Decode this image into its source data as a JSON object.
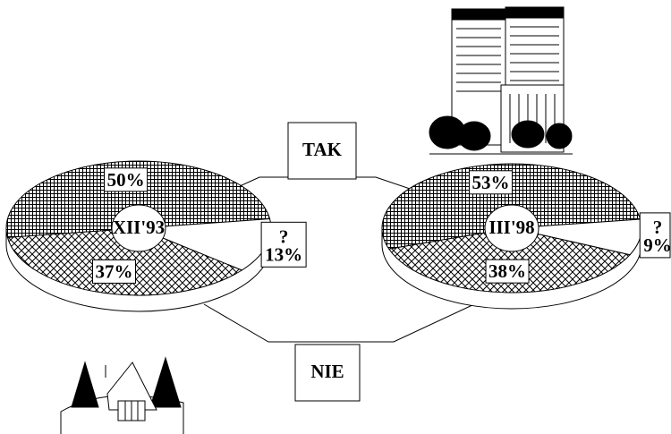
{
  "chart_data": {
    "type": "pie",
    "categories": [
      "TAK",
      "?",
      "NIE"
    ],
    "series": [
      {
        "name": "XII'93",
        "values": [
          50,
          13,
          37
        ],
        "value_labels": [
          "50%",
          "13%",
          "37%"
        ]
      },
      {
        "name": "III'98",
        "values": [
          53,
          9,
          38
        ],
        "value_labels": [
          "53%",
          "9%",
          "38%"
        ]
      }
    ]
  }
}
